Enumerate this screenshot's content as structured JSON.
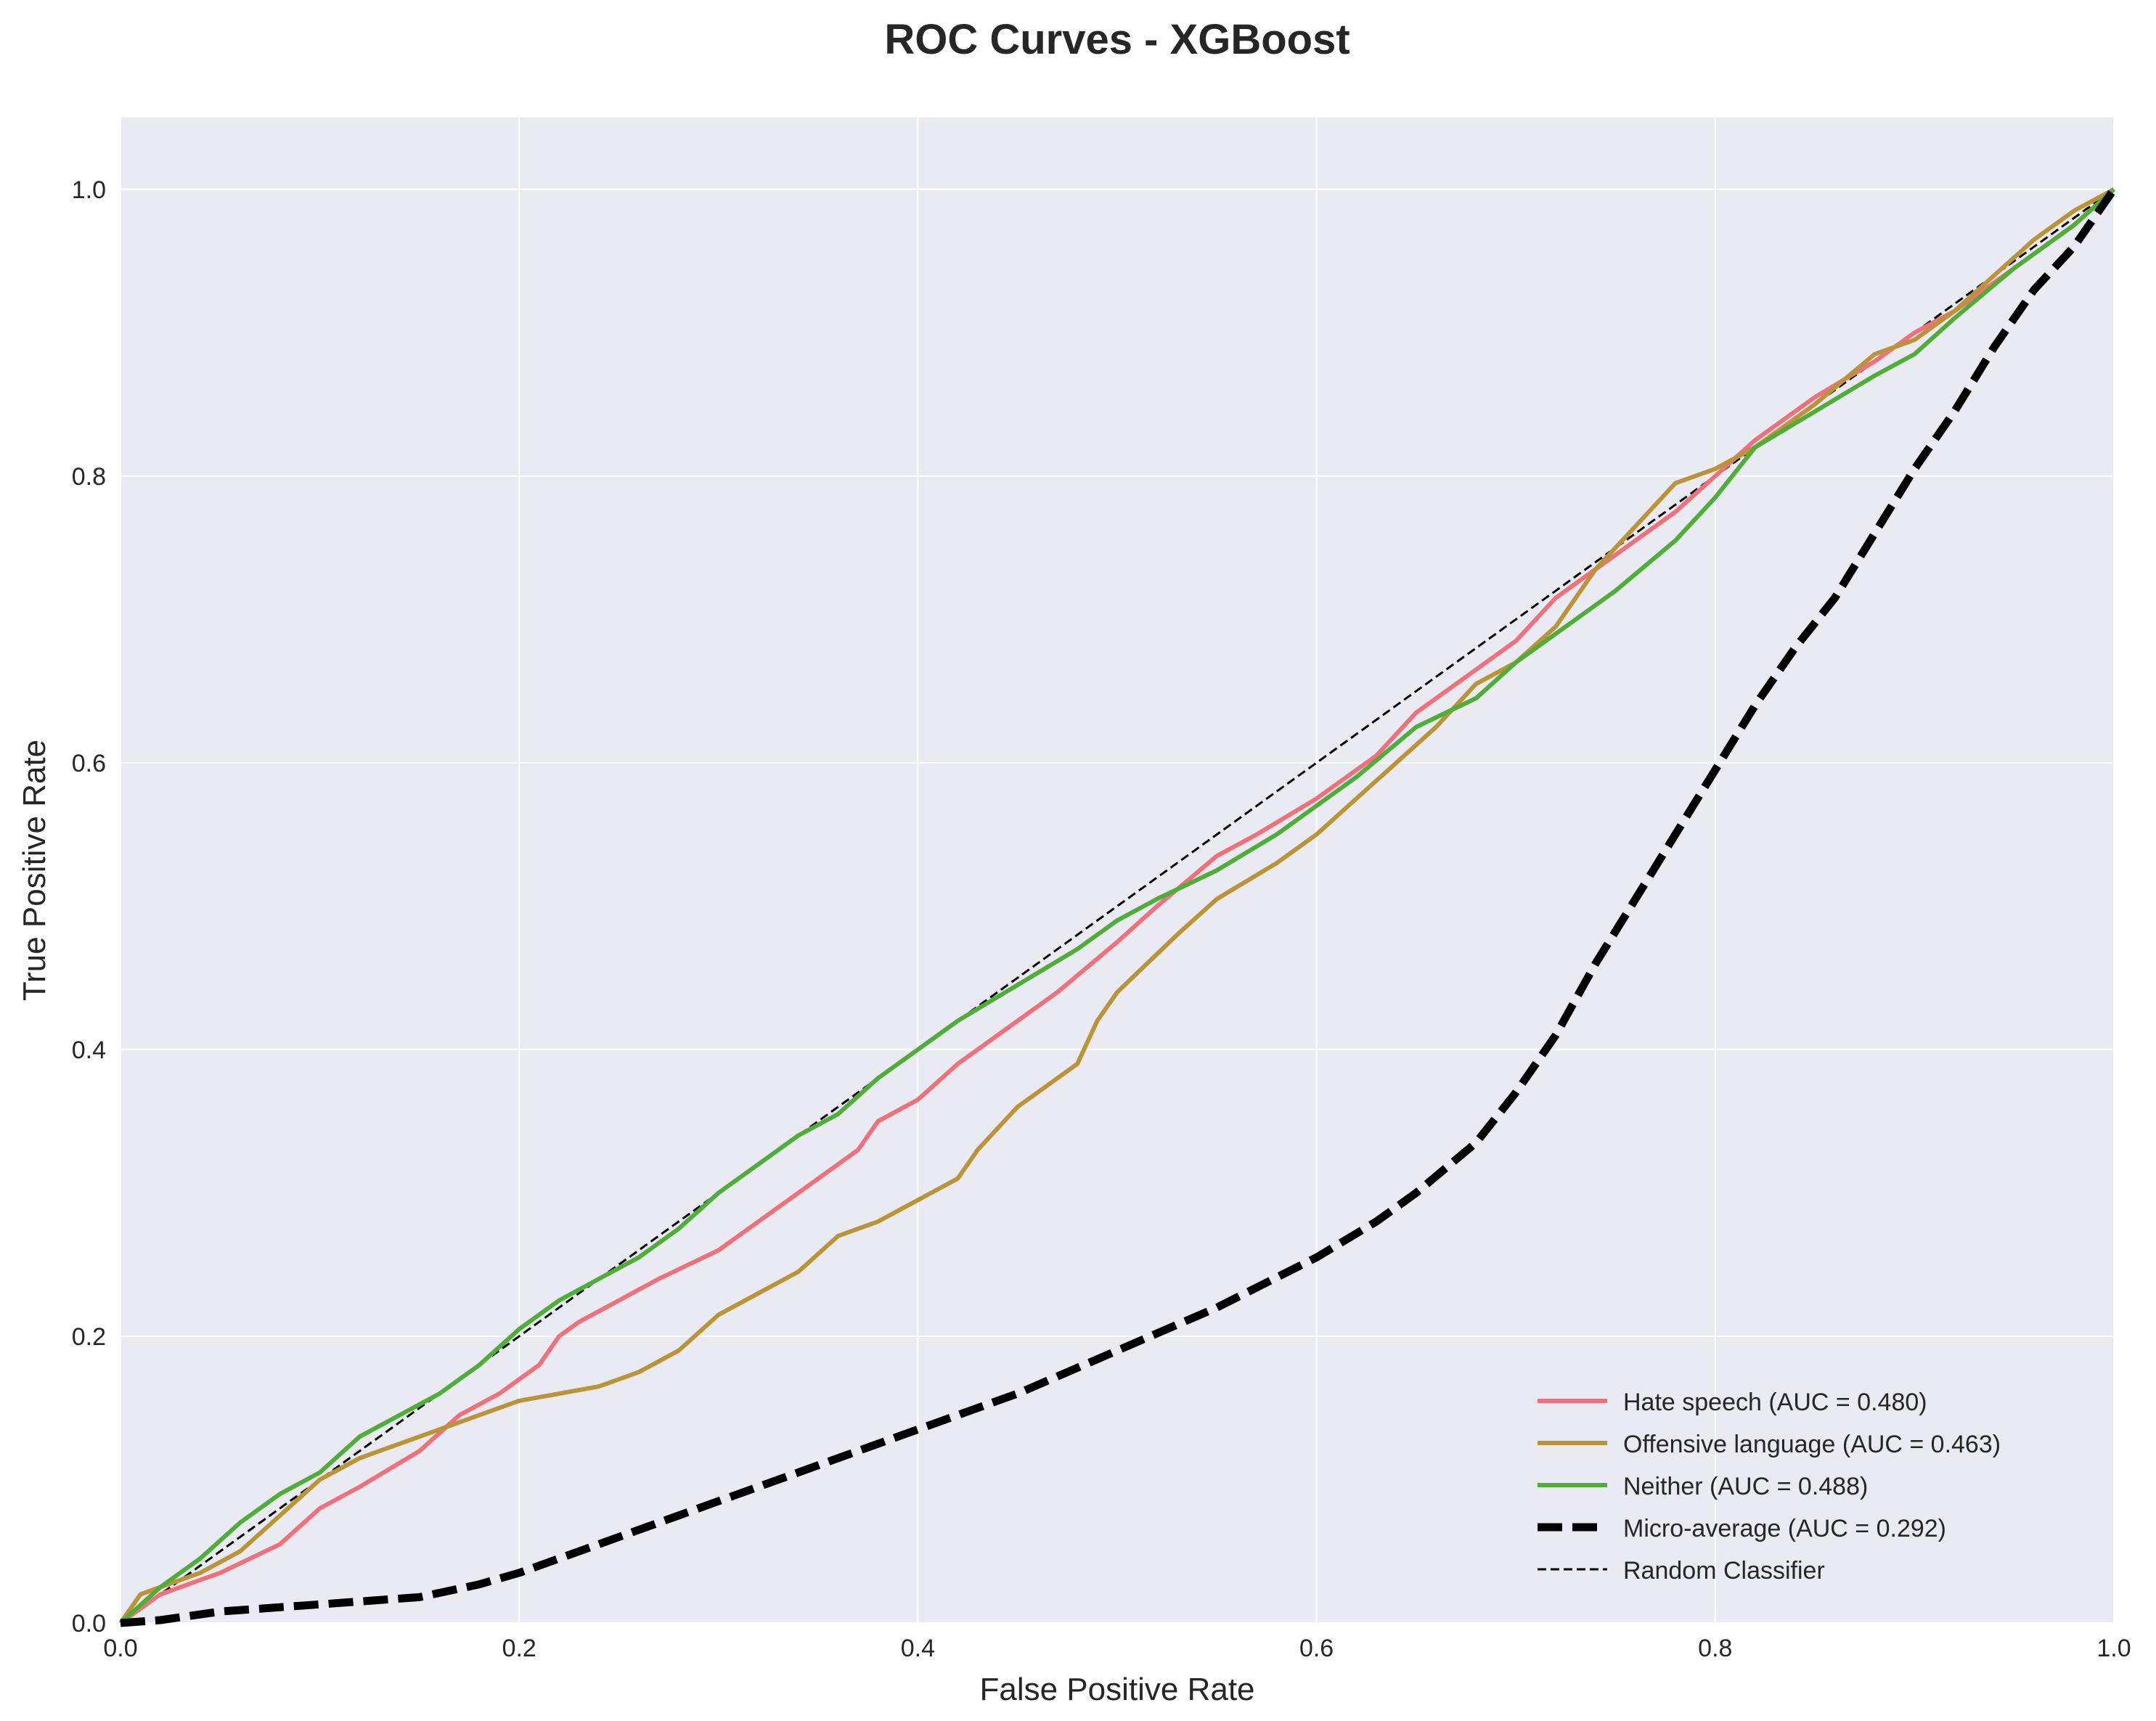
{
  "chart_data": {
    "type": "line",
    "title": "ROC Curves - XGBoost",
    "xlabel": "False Positive Rate",
    "ylabel": "True Positive Rate",
    "xlim": [
      0.0,
      1.0
    ],
    "ylim": [
      0.0,
      1.05
    ],
    "xticks": [
      0.0,
      0.2,
      0.4,
      0.6,
      0.8,
      1.0
    ],
    "yticks": [
      0.0,
      0.2,
      0.4,
      0.6,
      0.8,
      1.0
    ],
    "xtick_labels": [
      "0.0",
      "0.2",
      "0.4",
      "0.6",
      "0.8",
      "1.0"
    ],
    "ytick_labels": [
      "0.0",
      "0.2",
      "0.4",
      "0.6",
      "0.8",
      "1.0"
    ],
    "grid": true,
    "legend_position": "lower-right",
    "background": "#eaeaf2",
    "series": [
      {
        "name": "Hate speech (AUC = 0.480)",
        "color": "#f0717c",
        "style": "solid",
        "width": 6,
        "x": [
          0.0,
          0.02,
          0.05,
          0.08,
          0.1,
          0.12,
          0.15,
          0.17,
          0.19,
          0.21,
          0.22,
          0.23,
          0.25,
          0.27,
          0.3,
          0.33,
          0.35,
          0.37,
          0.38,
          0.4,
          0.42,
          0.45,
          0.47,
          0.5,
          0.52,
          0.55,
          0.57,
          0.6,
          0.63,
          0.65,
          0.68,
          0.7,
          0.72,
          0.75,
          0.78,
          0.8,
          0.82,
          0.85,
          0.88,
          0.9,
          0.92,
          0.95,
          0.98,
          1.0
        ],
        "y": [
          0.0,
          0.02,
          0.035,
          0.055,
          0.08,
          0.095,
          0.12,
          0.145,
          0.16,
          0.18,
          0.2,
          0.21,
          0.225,
          0.24,
          0.26,
          0.29,
          0.31,
          0.33,
          0.35,
          0.365,
          0.39,
          0.42,
          0.44,
          0.475,
          0.5,
          0.535,
          0.55,
          0.575,
          0.605,
          0.635,
          0.665,
          0.685,
          0.715,
          0.745,
          0.775,
          0.8,
          0.825,
          0.855,
          0.88,
          0.9,
          0.915,
          0.945,
          0.975,
          1.0
        ]
      },
      {
        "name": "Offensive language (AUC = 0.463)",
        "color": "#bb9438",
        "style": "solid",
        "width": 6,
        "x": [
          0.0,
          0.01,
          0.02,
          0.04,
          0.06,
          0.08,
          0.1,
          0.12,
          0.14,
          0.16,
          0.18,
          0.2,
          0.22,
          0.24,
          0.26,
          0.28,
          0.3,
          0.32,
          0.34,
          0.36,
          0.38,
          0.4,
          0.42,
          0.43,
          0.45,
          0.48,
          0.49,
          0.5,
          0.53,
          0.55,
          0.58,
          0.6,
          0.62,
          0.64,
          0.66,
          0.68,
          0.7,
          0.72,
          0.74,
          0.76,
          0.78,
          0.8,
          0.82,
          0.85,
          0.88,
          0.9,
          0.92,
          0.94,
          0.96,
          0.98,
          1.0
        ],
        "y": [
          0.0,
          0.02,
          0.025,
          0.035,
          0.05,
          0.075,
          0.1,
          0.115,
          0.125,
          0.135,
          0.145,
          0.155,
          0.16,
          0.165,
          0.175,
          0.19,
          0.215,
          0.23,
          0.245,
          0.27,
          0.28,
          0.295,
          0.31,
          0.33,
          0.36,
          0.39,
          0.42,
          0.44,
          0.48,
          0.505,
          0.53,
          0.55,
          0.575,
          0.6,
          0.625,
          0.655,
          0.67,
          0.695,
          0.735,
          0.765,
          0.795,
          0.805,
          0.82,
          0.85,
          0.885,
          0.895,
          0.915,
          0.94,
          0.965,
          0.985,
          1.0
        ]
      },
      {
        "name": "Neither (AUC = 0.488)",
        "color": "#4fae38",
        "style": "solid",
        "width": 6,
        "x": [
          0.0,
          0.02,
          0.04,
          0.06,
          0.08,
          0.1,
          0.12,
          0.14,
          0.16,
          0.18,
          0.2,
          0.22,
          0.24,
          0.26,
          0.28,
          0.3,
          0.32,
          0.34,
          0.36,
          0.38,
          0.4,
          0.42,
          0.45,
          0.48,
          0.5,
          0.52,
          0.55,
          0.58,
          0.6,
          0.62,
          0.65,
          0.68,
          0.7,
          0.72,
          0.75,
          0.78,
          0.8,
          0.82,
          0.85,
          0.88,
          0.9,
          0.92,
          0.95,
          0.98,
          1.0
        ],
        "y": [
          0.0,
          0.025,
          0.045,
          0.07,
          0.09,
          0.105,
          0.13,
          0.145,
          0.16,
          0.18,
          0.205,
          0.225,
          0.24,
          0.255,
          0.275,
          0.3,
          0.32,
          0.34,
          0.355,
          0.38,
          0.4,
          0.42,
          0.445,
          0.47,
          0.49,
          0.505,
          0.525,
          0.55,
          0.57,
          0.59,
          0.625,
          0.645,
          0.67,
          0.69,
          0.72,
          0.755,
          0.785,
          0.82,
          0.845,
          0.87,
          0.885,
          0.91,
          0.945,
          0.975,
          1.0
        ]
      },
      {
        "name": "Micro-average (AUC = 0.292)",
        "color": "#000000",
        "style": "dashed",
        "width": 11,
        "x": [
          0.0,
          0.02,
          0.05,
          0.1,
          0.15,
          0.18,
          0.2,
          0.25,
          0.3,
          0.35,
          0.4,
          0.45,
          0.5,
          0.55,
          0.6,
          0.63,
          0.65,
          0.68,
          0.7,
          0.72,
          0.74,
          0.76,
          0.78,
          0.8,
          0.82,
          0.84,
          0.86,
          0.88,
          0.9,
          0.92,
          0.94,
          0.96,
          0.98,
          1.0
        ],
        "y": [
          0.0,
          0.002,
          0.008,
          0.013,
          0.018,
          0.027,
          0.035,
          0.06,
          0.085,
          0.11,
          0.135,
          0.16,
          0.19,
          0.22,
          0.255,
          0.28,
          0.3,
          0.335,
          0.37,
          0.41,
          0.46,
          0.505,
          0.55,
          0.595,
          0.64,
          0.68,
          0.715,
          0.76,
          0.805,
          0.845,
          0.89,
          0.93,
          0.96,
          1.0
        ]
      },
      {
        "name": "Random Classifier",
        "color": "#000000",
        "style": "dashed-thin",
        "width": 3,
        "x": [
          0.0,
          1.0
        ],
        "y": [
          0.0,
          1.0
        ]
      }
    ]
  }
}
